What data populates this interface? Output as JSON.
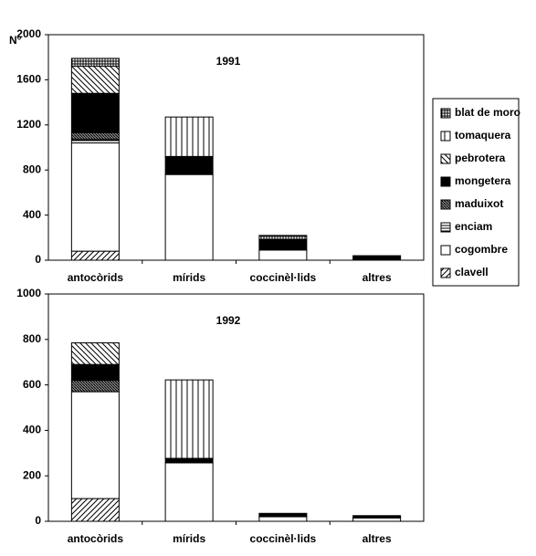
{
  "chart_data": [
    {
      "type": "bar",
      "stacked": true,
      "title": "1991",
      "ylabel": "N°",
      "categories": [
        "antocòrids",
        "mírids",
        "coccinèl·lids",
        "altres"
      ],
      "ylim": [
        0,
        2000
      ],
      "yticks": [
        0,
        400,
        800,
        1200,
        1600,
        2000
      ],
      "series": [
        {
          "name": "clavell",
          "pattern": "diag-up",
          "values": [
            80,
            0,
            0,
            0
          ]
        },
        {
          "name": "cogombre",
          "pattern": "white",
          "values": [
            960,
            760,
            90,
            0
          ]
        },
        {
          "name": "enciam",
          "pattern": "horiz",
          "values": [
            30,
            0,
            0,
            0
          ]
        },
        {
          "name": "maduixot",
          "pattern": "dense",
          "values": [
            60,
            0,
            0,
            0
          ]
        },
        {
          "name": "mongetera",
          "pattern": "black",
          "values": [
            350,
            160,
            90,
            40
          ]
        },
        {
          "name": "pebrotera",
          "pattern": "diag-down",
          "values": [
            240,
            0,
            0,
            0
          ]
        },
        {
          "name": "tomaquera",
          "pattern": "vert",
          "values": [
            0,
            350,
            0,
            0
          ]
        },
        {
          "name": "blat de moro",
          "pattern": "grid",
          "values": [
            70,
            0,
            40,
            0
          ]
        }
      ]
    },
    {
      "type": "bar",
      "stacked": true,
      "title": "1992",
      "categories": [
        "antocòrids",
        "mírids",
        "coccinèl·lids",
        "altres"
      ],
      "ylim": [
        0,
        1000
      ],
      "yticks": [
        0,
        200,
        400,
        600,
        800,
        1000
      ],
      "series": [
        {
          "name": "clavell",
          "pattern": "diag-up",
          "values": [
            100,
            0,
            0,
            0
          ]
        },
        {
          "name": "cogombre",
          "pattern": "white",
          "values": [
            470,
            257,
            20,
            15
          ]
        },
        {
          "name": "enciam",
          "pattern": "horiz",
          "values": [
            0,
            0,
            0,
            0
          ]
        },
        {
          "name": "maduixot",
          "pattern": "dense",
          "values": [
            50,
            0,
            0,
            0
          ]
        },
        {
          "name": "mongetera",
          "pattern": "black",
          "values": [
            70,
            20,
            15,
            10
          ]
        },
        {
          "name": "pebrotera",
          "pattern": "diag-down",
          "values": [
            95,
            0,
            0,
            0
          ]
        },
        {
          "name": "tomaquera",
          "pattern": "vert",
          "values": [
            0,
            345,
            0,
            0
          ]
        },
        {
          "name": "blat de moro",
          "pattern": "grid",
          "values": [
            0,
            0,
            0,
            0
          ]
        }
      ]
    }
  ]
}
